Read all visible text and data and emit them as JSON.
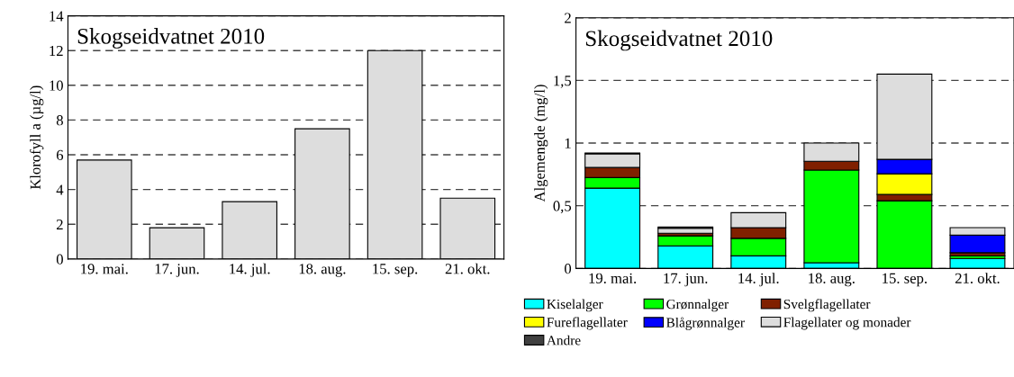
{
  "chart_data": [
    {
      "type": "bar",
      "title": "Skogseidvatnet 2010",
      "ylabel": "Klorofyll a (µg/l)",
      "categories": [
        "19. mai.",
        "17. jun.",
        "14. jul.",
        "18. aug.",
        "15. sep.",
        "21. okt."
      ],
      "values": [
        5.7,
        1.8,
        3.3,
        7.5,
        12,
        3.5
      ],
      "color": "#dddddd",
      "ylim": [
        0,
        14
      ],
      "yticks": [
        0,
        2,
        4,
        6,
        8,
        10,
        12,
        14
      ],
      "grid": "y"
    },
    {
      "type": "bar",
      "title": "Skogseidvatnet 2010",
      "ylabel": "Algemengde (mg/l)",
      "categories": [
        "19. mai.",
        "17. jun.",
        "14. jul.",
        "18. aug.",
        "15. sep.",
        "21. okt."
      ],
      "stacked": true,
      "legend": "bottom",
      "grid": "y",
      "ylim": [
        0,
        2
      ],
      "yticks": [
        0,
        {
          "value": 0.5,
          "label": "0,5"
        },
        1,
        {
          "value": 1.5,
          "label": "1,5"
        },
        2
      ],
      "series": [
        {
          "name": "Kiselalger",
          "color": "#00ffff",
          "values": [
            0.64,
            0.18,
            0.1,
            0.045,
            null,
            0.08
          ]
        },
        {
          "name": "Grønnalger",
          "color": "#00ff00",
          "values": [
            0.085,
            0.08,
            0.14,
            0.74,
            0.54,
            0.02
          ]
        },
        {
          "name": "Svelgflagellater",
          "color": "#802000",
          "values": [
            0.08,
            0.02,
            0.085,
            0.07,
            0.05,
            0.025
          ]
        },
        {
          "name": "Fureflagellater",
          "color": "#ffff00",
          "values": [
            null,
            null,
            null,
            null,
            0.165,
            null
          ]
        },
        {
          "name": "Blågrønnalger",
          "color": "#0000ff",
          "values": [
            null,
            null,
            null,
            null,
            0.115,
            0.14
          ]
        },
        {
          "name": "Flagellater og monader",
          "color": "#dddddd",
          "values": [
            0.11,
            0.04,
            0.12,
            0.145,
            0.68,
            0.06
          ]
        },
        {
          "name": "Andre",
          "color": "#404040",
          "values": [
            0.005,
            0.01,
            null,
            null,
            null,
            null
          ]
        }
      ]
    }
  ]
}
